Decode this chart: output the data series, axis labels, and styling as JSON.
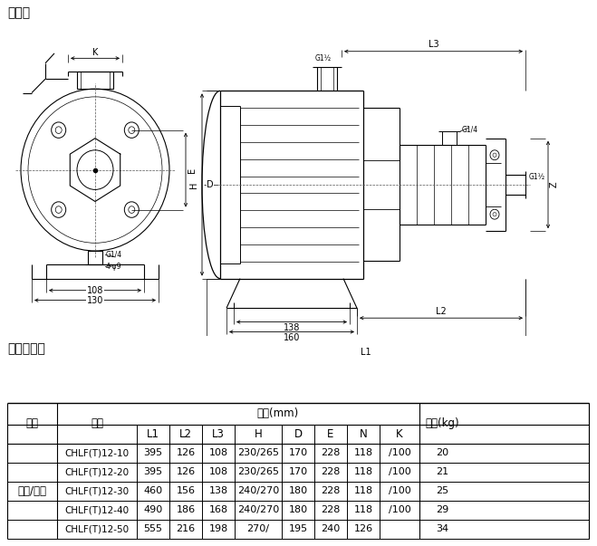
{
  "title_diagram": "安装图",
  "title_table": "尺寸和重量",
  "bg_color": "#ffffff",
  "table_motor_label": "三相/单相",
  "table_rows": [
    [
      "CHLF(T)12-10",
      "395",
      "126",
      "108",
      "230/265",
      "170",
      "228",
      "118",
      "/100",
      "20"
    ],
    [
      "CHLF(T)12-20",
      "395",
      "126",
      "108",
      "230/265",
      "170",
      "228",
      "118",
      "/100",
      "21"
    ],
    [
      "CHLF(T)12-30",
      "460",
      "156",
      "138",
      "240/270",
      "180",
      "228",
      "118",
      "/100",
      "25"
    ],
    [
      "CHLF(T)12-40",
      "490",
      "186",
      "168",
      "240/270",
      "180",
      "228",
      "118",
      "/100",
      "29"
    ],
    [
      "CHLF(T)12-50",
      "555",
      "216",
      "198",
      "270/",
      "195",
      "240",
      "126",
      "",
      "34"
    ]
  ],
  "lc": "#000000",
  "tc": "#000000"
}
